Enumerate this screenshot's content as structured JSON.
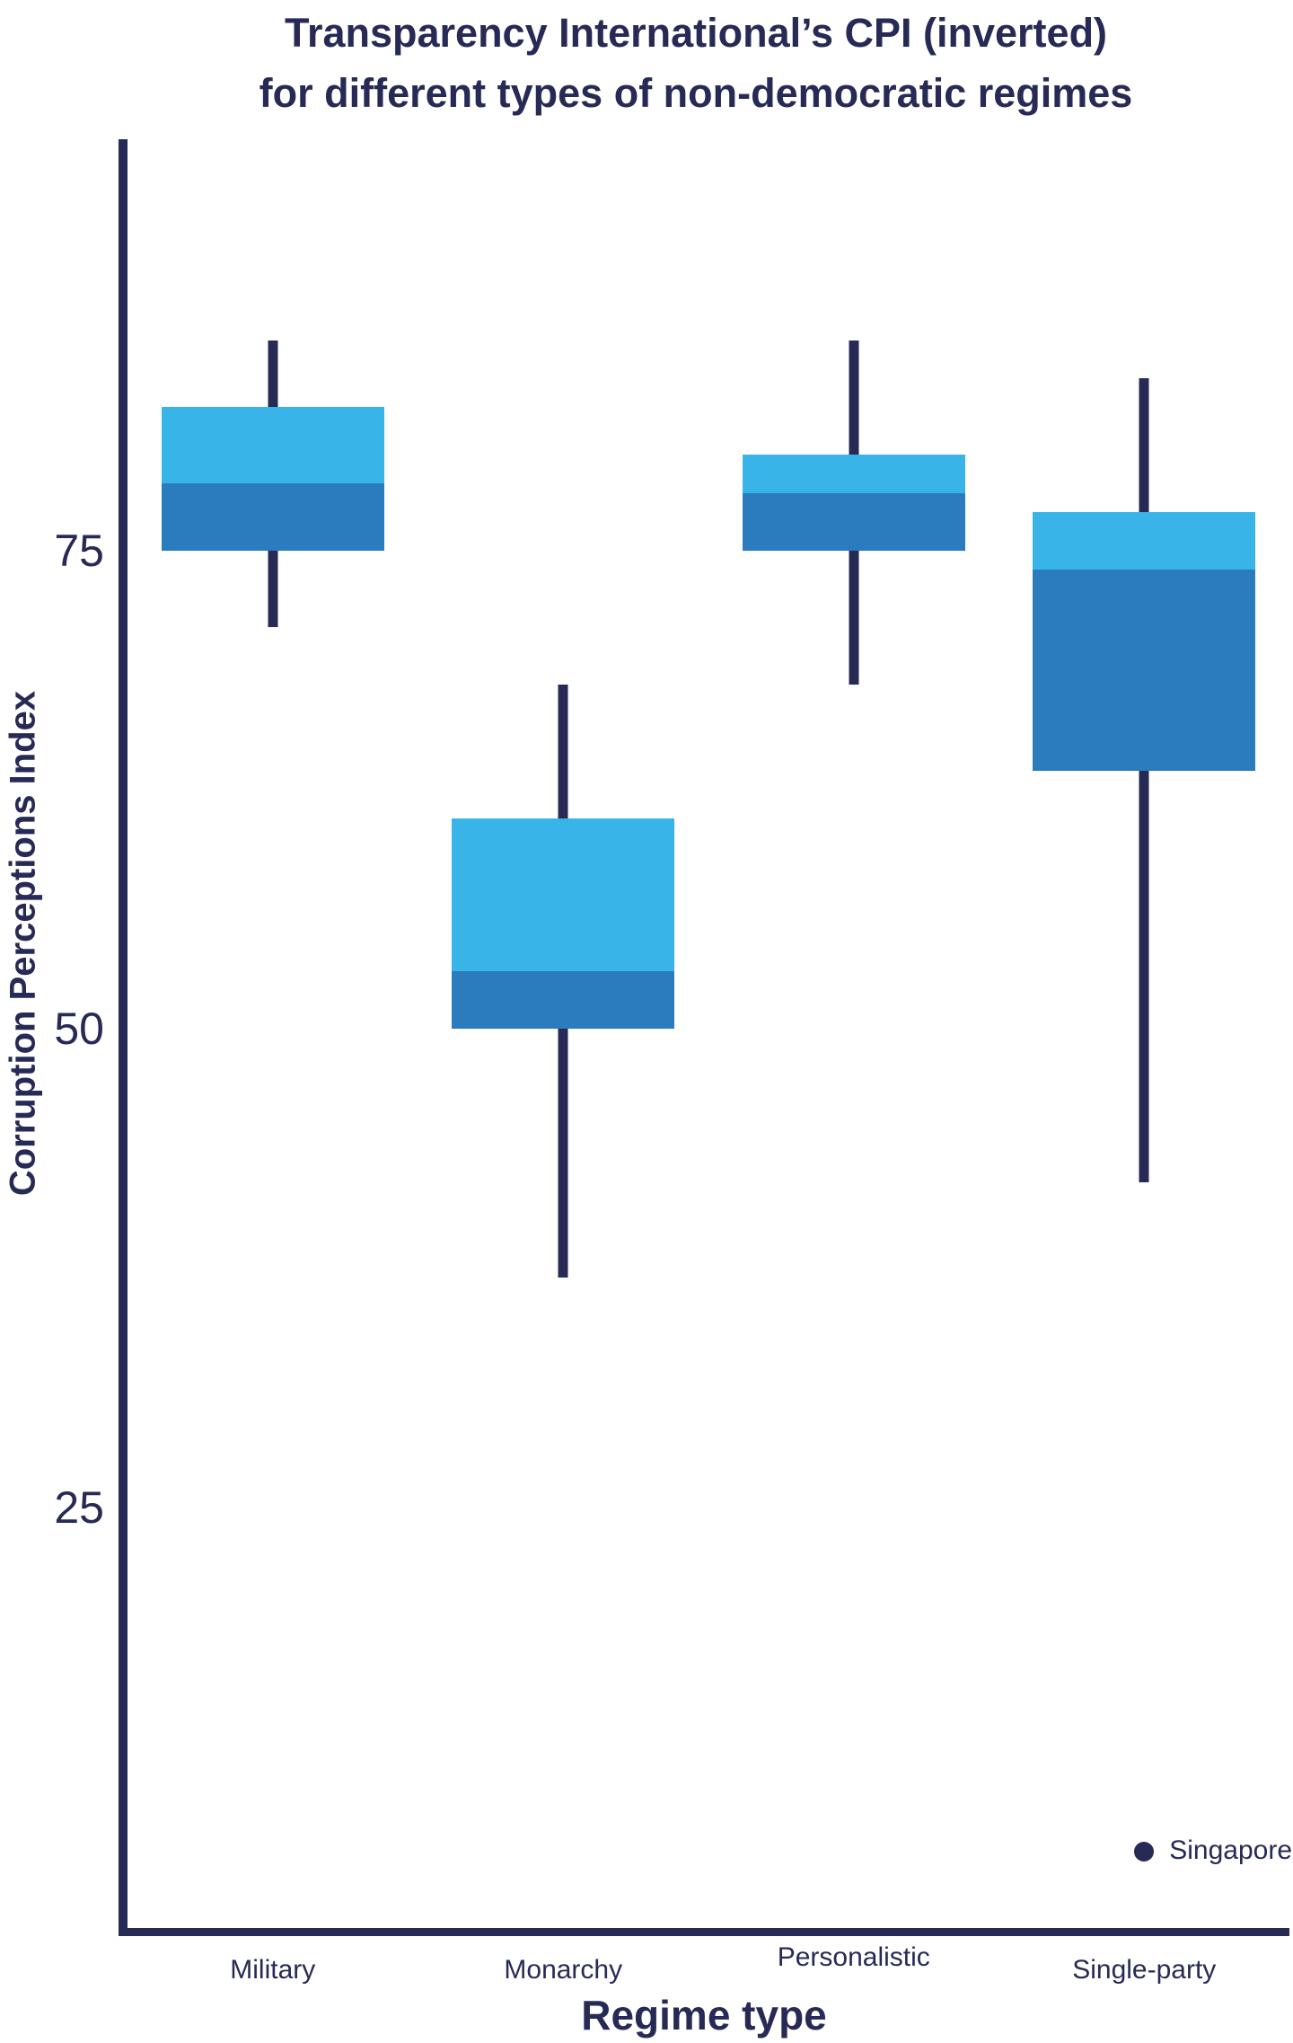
{
  "header": {
    "title_line1": "Transparency International’s CPI (inverted)",
    "title_line2": "for different types of non-democratic regimes"
  },
  "chart_data": {
    "type": "boxplot",
    "title": "Transparency International’s CPI (inverted) for different types of non-democratic regimes",
    "xlabel": "Regime type",
    "ylabel": "Corruption Perceptions Index",
    "categories": [
      "Military",
      "Monarchy",
      "Personalistic",
      "Single-party"
    ],
    "series": [
      {
        "name": "Military",
        "min": 71,
        "q1": 75,
        "median": 78.5,
        "q3": 82.5,
        "max": 86
      },
      {
        "name": "Monarchy",
        "min": 37,
        "q1": 50,
        "median": 53,
        "q3": 61,
        "max": 68
      },
      {
        "name": "Personalistic",
        "min": 68,
        "q1": 75,
        "median": 78,
        "q3": 80,
        "max": 86
      },
      {
        "name": "Single-party",
        "min": 42,
        "q1": 63.5,
        "median": 74,
        "q3": 77,
        "max": 84
      }
    ],
    "outlier": {
      "label": "Singapore",
      "category_index": 3,
      "value": 7
    },
    "y_ticks": [
      75,
      50,
      25
    ],
    "ylim": [
      3,
      96.5
    ],
    "grid": false,
    "legend_position": "none",
    "colors": {
      "box_upper": "#38b4e9",
      "box_lower": "#2a7cbf",
      "axis": "#272a55",
      "text": "#272a55"
    }
  }
}
